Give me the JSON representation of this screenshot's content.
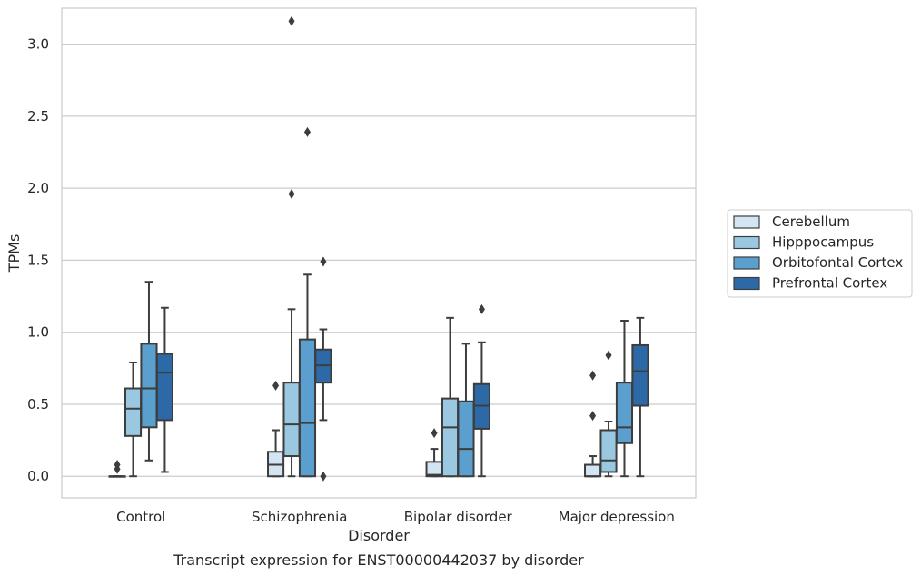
{
  "chart_data": {
    "type": "boxplot",
    "title": "",
    "caption": "Transcript expression for ENST00000442037 by disorder",
    "xlabel": "Disorder",
    "ylabel": "TPMs",
    "ylim": [
      -0.15,
      3.25
    ],
    "yticks": [
      0.0,
      0.5,
      1.0,
      1.5,
      2.0,
      2.5,
      3.0
    ],
    "ytick_labels": [
      "0.0",
      "0.5",
      "1.0",
      "1.5",
      "2.0",
      "2.5",
      "3.0"
    ],
    "grid": "horizontal",
    "legend_position": "outside-right",
    "categories": [
      "Control",
      "Schizophrenia",
      "Bipolar disorder",
      "Major depression"
    ],
    "series": [
      {
        "name": "Cerebellum",
        "color": "#d3e4f3",
        "boxes": [
          {
            "q1": 0.0,
            "median": 0.0,
            "q3": 0.0,
            "whislo": 0.0,
            "whishi": 0.0,
            "fliers": [
              0.05,
              0.08
            ]
          },
          {
            "q1": 0.0,
            "median": 0.08,
            "q3": 0.17,
            "whislo": 0.0,
            "whishi": 0.32,
            "fliers": [
              0.63
            ]
          },
          {
            "q1": 0.0,
            "median": 0.01,
            "q3": 0.1,
            "whislo": 0.0,
            "whishi": 0.19,
            "fliers": [
              0.3
            ]
          },
          {
            "q1": 0.0,
            "median": 0.0,
            "q3": 0.08,
            "whislo": 0.0,
            "whishi": 0.14,
            "fliers": [
              0.42,
              0.7
            ]
          }
        ]
      },
      {
        "name": "Hipppocampus",
        "color": "#9ac8e0",
        "boxes": [
          {
            "q1": 0.28,
            "median": 0.47,
            "q3": 0.61,
            "whislo": 0.0,
            "whishi": 0.79,
            "fliers": []
          },
          {
            "q1": 0.14,
            "median": 0.36,
            "q3": 0.65,
            "whislo": 0.0,
            "whishi": 1.16,
            "fliers": [
              1.96,
              3.16
            ]
          },
          {
            "q1": 0.0,
            "median": 0.34,
            "q3": 0.54,
            "whislo": 0.0,
            "whishi": 1.1,
            "fliers": []
          },
          {
            "q1": 0.03,
            "median": 0.11,
            "q3": 0.32,
            "whislo": 0.0,
            "whishi": 0.38,
            "fliers": [
              0.84
            ]
          }
        ]
      },
      {
        "name": "Orbitofontal Cortex",
        "color": "#5a9fcd",
        "boxes": [
          {
            "q1": 0.34,
            "median": 0.61,
            "q3": 0.92,
            "whislo": 0.11,
            "whishi": 1.35,
            "fliers": []
          },
          {
            "q1": 0.0,
            "median": 0.37,
            "q3": 0.95,
            "whislo": 0.0,
            "whishi": 1.4,
            "fliers": [
              2.39
            ]
          },
          {
            "q1": 0.0,
            "median": 0.19,
            "q3": 0.52,
            "whislo": 0.0,
            "whishi": 0.92,
            "fliers": []
          },
          {
            "q1": 0.23,
            "median": 0.34,
            "q3": 0.65,
            "whislo": 0.0,
            "whishi": 1.08,
            "fliers": []
          }
        ]
      },
      {
        "name": "Prefrontal Cortex",
        "color": "#2d69a6",
        "boxes": [
          {
            "q1": 0.39,
            "median": 0.72,
            "q3": 0.85,
            "whislo": 0.03,
            "whishi": 1.17,
            "fliers": []
          },
          {
            "q1": 0.65,
            "median": 0.77,
            "q3": 0.88,
            "whislo": 0.39,
            "whishi": 1.02,
            "fliers": [
              0.0,
              1.49
            ]
          },
          {
            "q1": 0.33,
            "median": 0.49,
            "q3": 0.64,
            "whislo": 0.0,
            "whishi": 0.93,
            "fliers": [
              1.16
            ]
          },
          {
            "q1": 0.49,
            "median": 0.73,
            "q3": 0.91,
            "whislo": 0.0,
            "whishi": 1.1,
            "fliers": []
          }
        ]
      }
    ]
  }
}
